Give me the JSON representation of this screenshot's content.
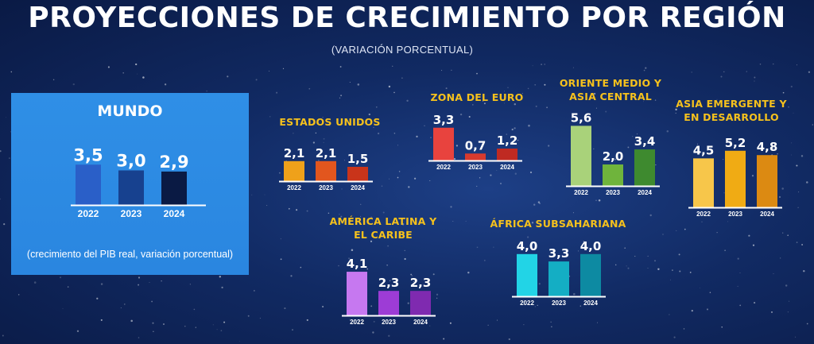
{
  "title": "PROYECCIONES DE CRECIMIENTO POR REGIÓN",
  "subtitle": "(VARIACIÓN PORCENTUAL)",
  "world_note": "(crecimiento del PIB real, variación porcentual)",
  "chart_data": [
    {
      "type": "bar",
      "id": "mundo",
      "title": "MUNDO",
      "categories": [
        "2022",
        "2023",
        "2024"
      ],
      "values": [
        3.5,
        3.0,
        2.9
      ],
      "labels": [
        "3,5",
        "3,0",
        "2,9"
      ],
      "colors": [
        "#2a5fc8",
        "#17418f",
        "#0a1a44"
      ]
    },
    {
      "type": "bar",
      "id": "eeuu",
      "title": "ESTADOS UNIDOS",
      "categories": [
        "2022",
        "2023",
        "2024"
      ],
      "values": [
        2.1,
        2.1,
        1.5
      ],
      "labels": [
        "2,1",
        "2,1",
        "1,5"
      ],
      "colors": [
        "#efa11a",
        "#e2561e",
        "#c9341a"
      ]
    },
    {
      "type": "bar",
      "id": "euro",
      "title": "ZONA DEL EURO",
      "categories": [
        "2022",
        "2023",
        "2024"
      ],
      "values": [
        3.3,
        0.7,
        1.2
      ],
      "labels": [
        "3,3",
        "0,7",
        "1,2"
      ],
      "colors": [
        "#e8433e",
        "#d73a2e",
        "#bf2a22"
      ]
    },
    {
      "type": "bar",
      "id": "oriente",
      "title": "ORIENTE MEDIO Y ASIA CENTRAL",
      "categories": [
        "2022",
        "2023",
        "2024"
      ],
      "values": [
        5.6,
        2.0,
        3.4
      ],
      "labels": [
        "5,6",
        "2,0",
        "3,4"
      ],
      "colors": [
        "#a9d27a",
        "#6fb43c",
        "#3e8a2f"
      ]
    },
    {
      "type": "bar",
      "id": "asia",
      "title": "ASIA EMERGENTE Y EN DESARROLLO",
      "categories": [
        "2022",
        "2023",
        "2024"
      ],
      "values": [
        4.5,
        5.2,
        4.8
      ],
      "labels": [
        "4,5",
        "5,2",
        "4,8"
      ],
      "colors": [
        "#f7c64a",
        "#f0ab14",
        "#dc8a12"
      ]
    },
    {
      "type": "bar",
      "id": "latam",
      "title": "AMÉRICA LATINA Y EL CARIBE",
      "categories": [
        "2022",
        "2023",
        "2024"
      ],
      "values": [
        4.1,
        2.3,
        2.3
      ],
      "labels": [
        "4,1",
        "2,3",
        "2,3"
      ],
      "colors": [
        "#c678f0",
        "#9d3cd6",
        "#7f2ab0"
      ]
    },
    {
      "type": "bar",
      "id": "africa",
      "title": "ÁFRICA SUBSAHARIANA",
      "categories": [
        "2022",
        "2023",
        "2024"
      ],
      "values": [
        4.0,
        3.3,
        4.0
      ],
      "labels": [
        "4,0",
        "3,3",
        "4,0"
      ],
      "colors": [
        "#22d4e6",
        "#14aec4",
        "#0d8aa2"
      ]
    }
  ]
}
